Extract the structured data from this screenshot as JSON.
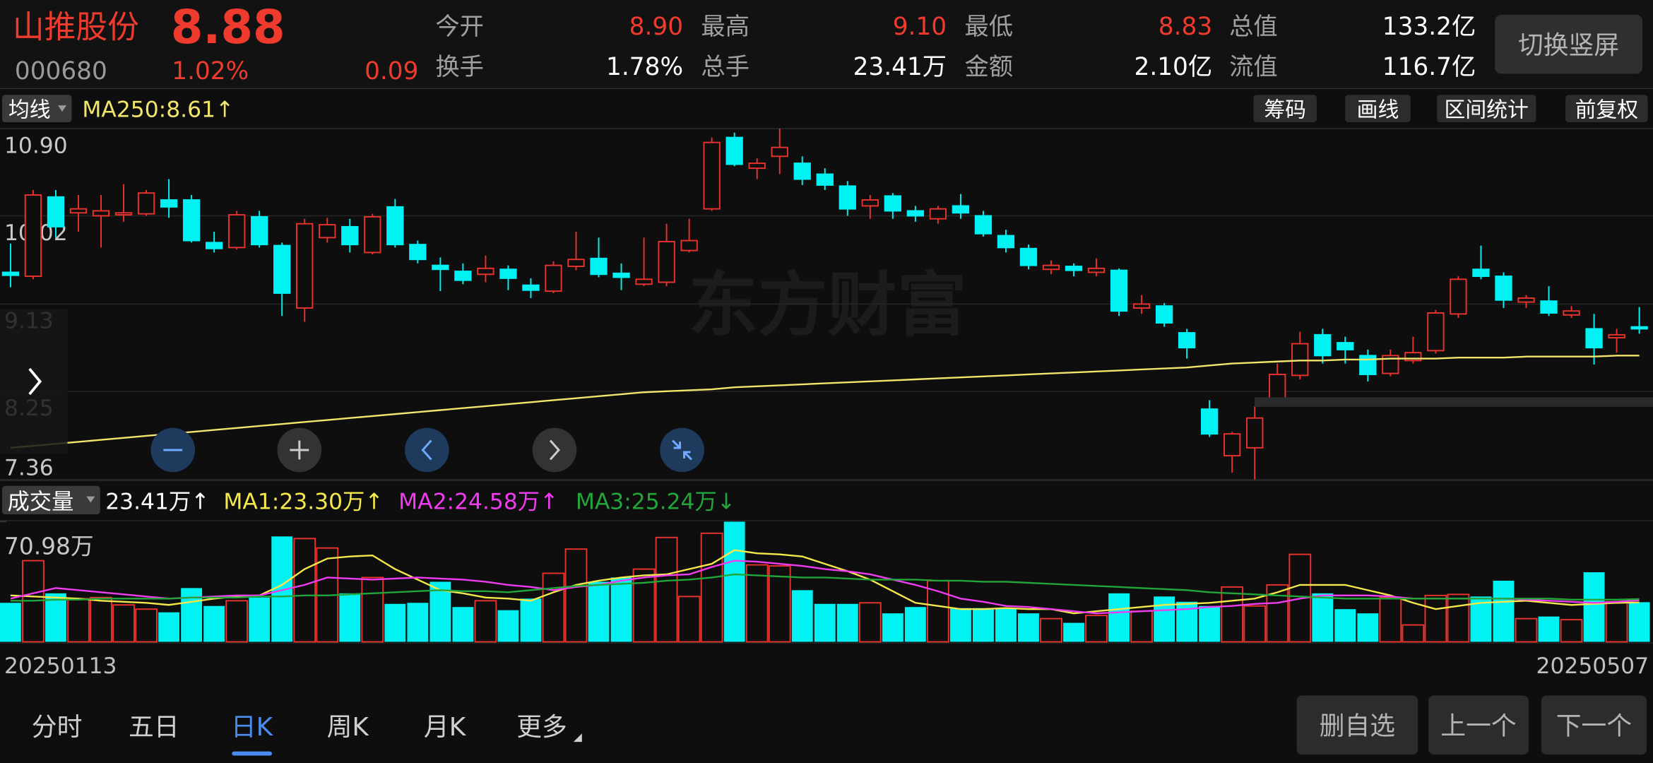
{
  "header": {
    "name": "山推股份",
    "price": "8.88",
    "code": "000680",
    "change_pct": "1.02%",
    "change": "0.09",
    "stats": [
      {
        "label": "今开",
        "value": "8.90",
        "color": "#ee3b2e"
      },
      {
        "label": "最高",
        "value": "9.10",
        "color": "#ee3b2e"
      },
      {
        "label": "最低",
        "value": "8.83",
        "color": "#ee3b2e"
      },
      {
        "label": "总值",
        "value": "133.2亿",
        "color": "#ffffff"
      },
      {
        "label": "换手",
        "value": "1.78%",
        "color": "#ffffff"
      },
      {
        "label": "总手",
        "value": "23.41万",
        "color": "#ffffff"
      },
      {
        "label": "金额",
        "value": "2.10亿",
        "color": "#ffffff"
      },
      {
        "label": "流值",
        "value": "116.7亿",
        "color": "#ffffff"
      }
    ],
    "button": "切换竖屏"
  },
  "toolbar": {
    "indicator": "均线",
    "buttons": [
      "筹码",
      "画线",
      "区间统计",
      "前复权"
    ]
  },
  "watermark": "东方财富",
  "volume_bar": {
    "label": "成交量",
    "current": "23.41万↑"
  },
  "chart_data": [
    {
      "type": "candlestick",
      "up_color": "#e8322e",
      "down_color": "#00f2f2",
      "ylim": [
        7.36,
        10.9
      ],
      "yticks": [
        {
          "value": 10.9,
          "label": "10.90"
        },
        10.02,
        9.13,
        8.25,
        7.36
      ],
      "grid": true,
      "open": [
        9.45,
        9.41,
        10.21,
        10.05,
        10.02,
        10.03,
        10.04,
        10.18,
        10.18,
        9.75,
        9.7,
        10.01,
        9.72,
        9.09,
        9.8,
        9.91,
        9.65,
        10.11,
        9.73,
        9.52,
        9.46,
        9.43,
        9.48,
        9.32,
        9.26,
        9.51,
        9.59,
        9.44,
        9.33,
        9.35,
        9.67,
        10.09,
        10.81,
        10.5,
        10.62,
        10.55,
        10.44,
        10.32,
        10.12,
        10.22,
        10.07,
        9.99,
        10.12,
        10.02,
        9.82,
        9.69,
        9.48,
        9.51,
        9.45,
        9.47,
        9.09,
        9.11,
        8.84,
        8.07,
        7.6,
        7.68,
        8.18,
        8.41,
        8.82,
        8.74,
        8.61,
        8.43,
        8.56,
        8.66,
        9.03,
        9.48,
        9.41,
        9.15,
        9.16,
        9.02,
        8.88,
        8.79,
        8.9
      ],
      "high": [
        9.74,
        10.28,
        10.28,
        10.23,
        10.23,
        10.34,
        10.28,
        10.39,
        10.23,
        9.86,
        10.07,
        10.07,
        9.75,
        9.99,
        10.0,
        9.99,
        10.04,
        10.19,
        9.77,
        9.6,
        9.54,
        9.62,
        9.52,
        9.39,
        9.56,
        9.86,
        9.8,
        9.54,
        9.8,
        9.94,
        9.99,
        10.81,
        10.86,
        10.6,
        10.9,
        10.62,
        10.5,
        10.37,
        10.23,
        10.25,
        10.12,
        10.12,
        10.24,
        10.07,
        9.88,
        9.73,
        9.57,
        9.54,
        9.59,
        9.49,
        9.22,
        9.14,
        8.88,
        8.16,
        7.84,
        8.1,
        8.53,
        8.85,
        8.88,
        8.8,
        8.67,
        8.67,
        8.8,
        9.07,
        9.41,
        9.72,
        9.45,
        9.22,
        9.31,
        9.11,
        9.03,
        8.88,
        9.1
      ],
      "low": [
        9.3,
        9.38,
        9.8,
        9.86,
        9.7,
        9.96,
        10.02,
        10.0,
        9.75,
        9.65,
        9.68,
        9.7,
        9.01,
        8.95,
        9.75,
        9.65,
        9.63,
        9.7,
        9.54,
        9.26,
        9.33,
        9.35,
        9.27,
        9.19,
        9.24,
        9.47,
        9.4,
        9.27,
        9.31,
        9.31,
        9.65,
        10.07,
        10.52,
        10.39,
        10.44,
        10.33,
        10.28,
        10.02,
        9.99,
        9.99,
        9.96,
        9.94,
        9.99,
        9.81,
        9.65,
        9.48,
        9.43,
        9.41,
        9.41,
        9.01,
        9.03,
        8.9,
        8.58,
        7.79,
        7.43,
        7.36,
        8.16,
        8.37,
        8.53,
        8.53,
        8.35,
        8.4,
        8.53,
        8.63,
        8.99,
        9.38,
        9.09,
        9.09,
        9.01,
        8.99,
        8.52,
        8.64,
        8.83
      ],
      "close": [
        9.42,
        10.23,
        9.91,
        10.09,
        10.07,
        10.05,
        10.25,
        10.11,
        9.77,
        9.69,
        10.03,
        9.73,
        9.24,
        9.94,
        9.93,
        9.73,
        10.01,
        9.73,
        9.58,
        9.48,
        9.37,
        9.49,
        9.39,
        9.27,
        9.52,
        9.58,
        9.43,
        9.4,
        9.38,
        9.76,
        9.77,
        10.76,
        10.54,
        10.55,
        10.71,
        10.39,
        10.33,
        10.09,
        10.18,
        10.07,
        10.02,
        10.09,
        10.05,
        9.84,
        9.7,
        9.52,
        9.52,
        9.47,
        9.49,
        9.06,
        9.13,
        8.94,
        8.69,
        7.82,
        7.82,
        7.98,
        8.42,
        8.73,
        8.61,
        8.67,
        8.42,
        8.61,
        8.64,
        9.04,
        9.38,
        9.41,
        9.17,
        9.19,
        9.04,
        9.06,
        8.69,
        8.82,
        8.88
      ],
      "series": [
        {
          "name": "MA250:8.61↑",
          "color": "#f2e56b",
          "values": [
            7.68,
            7.7,
            7.72,
            7.74,
            7.76,
            7.78,
            7.8,
            7.82,
            7.84,
            7.86,
            7.88,
            7.9,
            7.92,
            7.94,
            7.96,
            7.98,
            8.0,
            8.02,
            8.04,
            8.06,
            8.08,
            8.1,
            8.12,
            8.14,
            8.16,
            8.18,
            8.2,
            8.22,
            8.24,
            8.25,
            8.26,
            8.27,
            8.29,
            8.3,
            8.31,
            8.32,
            8.33,
            8.34,
            8.35,
            8.36,
            8.37,
            8.38,
            8.39,
            8.4,
            8.41,
            8.42,
            8.43,
            8.44,
            8.45,
            8.46,
            8.47,
            8.48,
            8.49,
            8.51,
            8.53,
            8.54,
            8.55,
            8.56,
            8.56,
            8.57,
            8.57,
            8.58,
            8.58,
            8.58,
            8.59,
            8.59,
            8.59,
            8.6,
            8.6,
            8.6,
            8.6,
            8.61,
            8.61
          ]
        }
      ]
    },
    {
      "type": "bar",
      "up_color": "#e8322e",
      "down_color": "#00f2f2",
      "categories": [
        "20250113",
        null,
        null,
        null,
        null,
        null,
        null,
        null,
        null,
        null,
        null,
        null,
        null,
        null,
        null,
        null,
        null,
        null,
        null,
        null,
        null,
        null,
        null,
        null,
        null,
        null,
        null,
        null,
        null,
        null,
        null,
        null,
        null,
        null,
        null,
        null,
        null,
        null,
        null,
        null,
        null,
        null,
        null,
        null,
        null,
        null,
        null,
        null,
        null,
        null,
        null,
        null,
        null,
        null,
        null,
        null,
        null,
        null,
        null,
        null,
        null,
        null,
        null,
        null,
        null,
        null,
        null,
        null,
        null,
        null,
        null,
        null,
        "20250507"
      ],
      "ylim": [
        0,
        70.98
      ],
      "yticks": [
        {
          "value": 70.98,
          "label": "70.98万"
        }
      ],
      "values": [
        23.04,
        47.94,
        28.64,
        25.53,
        26.15,
        21.79,
        19.3,
        17.43,
        31.75,
        21.17,
        24.28,
        26.15,
        62.26,
        61.01,
        55.41,
        28.64,
        37.98,
        22.41,
        23.04,
        35.49,
        20.55,
        24.28,
        18.68,
        25.53,
        40.47,
        54.79,
        35.49,
        37.98,
        42.96,
        61.64,
        26.77,
        64.13,
        70.98,
        45.45,
        44.83,
        30.51,
        22.41,
        22.41,
        23.04,
        16.81,
        20.55,
        36.11,
        19.92,
        19.92,
        19.92,
        16.81,
        13.7,
        11.21,
        15.57,
        28.64,
        18.06,
        26.77,
        23.66,
        21.17,
        32.38,
        21.17,
        33.62,
        51.68,
        28.64,
        19.3,
        16.81,
        26.15,
        9.96,
        27.39,
        28.02,
        26.77,
        36.11,
        13.7,
        14.94,
        13.07,
        41.09,
        23.66,
        23.41
      ],
      "series": [
        {
          "name": "MA1:23.30万↑",
          "color": "#f5e84a",
          "values": [
            27.39,
            26.77,
            26.15,
            25.53,
            24.28,
            23.66,
            23.04,
            21.79,
            23.66,
            25.53,
            26.77,
            27.39,
            33.62,
            42.96,
            49.19,
            50.43,
            51.05,
            42.96,
            36.73,
            30.51,
            28.64,
            26.15,
            25.53,
            24.28,
            29.26,
            33.62,
            36.11,
            37.98,
            39.22,
            39.85,
            42.96,
            46.07,
            54.17,
            52.3,
            51.68,
            50.43,
            46.07,
            41.71,
            36.73,
            29.88,
            23.04,
            21.17,
            19.3,
            19.3,
            19.92,
            19.3,
            19.3,
            16.81,
            18.06,
            19.3,
            20.55,
            21.79,
            22.41,
            23.04,
            24.28,
            25.53,
            29.26,
            33.62,
            33.62,
            33.62,
            30.51,
            27.39,
            23.04,
            19.3,
            21.17,
            23.04,
            23.66,
            24.28,
            23.04,
            21.79,
            22.41,
            23.04,
            23.3
          ]
        },
        {
          "name": "MA2:24.58万↑",
          "color": "#f03cf0",
          "values": [
            25.53,
            28.64,
            31.75,
            30.51,
            29.26,
            28.02,
            26.77,
            25.53,
            26.15,
            26.77,
            27.39,
            27.39,
            30.51,
            33.62,
            37.98,
            37.36,
            36.73,
            37.36,
            37.98,
            37.36,
            36.73,
            35.49,
            33.62,
            32.38,
            30.51,
            32.38,
            33.62,
            36.11,
            37.98,
            39.22,
            39.85,
            44.2,
            47.94,
            47.32,
            46.07,
            44.83,
            42.96,
            41.71,
            39.85,
            36.73,
            33.62,
            29.88,
            25.53,
            23.66,
            21.17,
            20.55,
            19.3,
            18.06,
            16.81,
            17.43,
            18.06,
            18.68,
            19.3,
            20.55,
            21.17,
            22.41,
            23.04,
            25.53,
            27.39,
            27.39,
            27.39,
            26.77,
            25.53,
            25.53,
            25.53,
            25.53,
            25.53,
            24.9,
            24.28,
            23.66,
            23.04,
            23.66,
            24.58
          ]
        },
        {
          "name": "MA3:25.24万↓",
          "color": "#22a63a",
          "values": [
            24.28,
            24.28,
            24.9,
            24.9,
            25.53,
            25.53,
            25.53,
            25.53,
            26.15,
            26.15,
            26.15,
            26.77,
            26.77,
            27.39,
            27.39,
            28.02,
            28.64,
            29.26,
            29.88,
            30.51,
            29.88,
            29.88,
            29.26,
            30.51,
            31.75,
            33.0,
            33.62,
            34.24,
            34.87,
            36.11,
            36.73,
            37.98,
            39.85,
            39.22,
            38.6,
            37.98,
            37.98,
            37.36,
            36.73,
            36.73,
            36.73,
            36.11,
            36.11,
            35.49,
            35.49,
            34.87,
            34.24,
            33.62,
            33.0,
            32.38,
            31.75,
            31.13,
            30.51,
            29.26,
            28.64,
            28.02,
            27.39,
            26.77,
            26.15,
            25.53,
            25.53,
            25.53,
            25.53,
            25.53,
            25.53,
            25.53,
            25.53,
            25.53,
            25.53,
            24.9,
            24.9,
            24.9,
            25.24
          ]
        }
      ]
    }
  ],
  "tabs": [
    {
      "label": "分时",
      "active": false
    },
    {
      "label": "五日",
      "active": false
    },
    {
      "label": "日K",
      "active": true
    },
    {
      "label": "周K",
      "active": false
    },
    {
      "label": "月K",
      "active": false
    },
    {
      "label": "更多",
      "active": false
    }
  ],
  "actions": [
    "删自选",
    "上一个",
    "下一个"
  ]
}
